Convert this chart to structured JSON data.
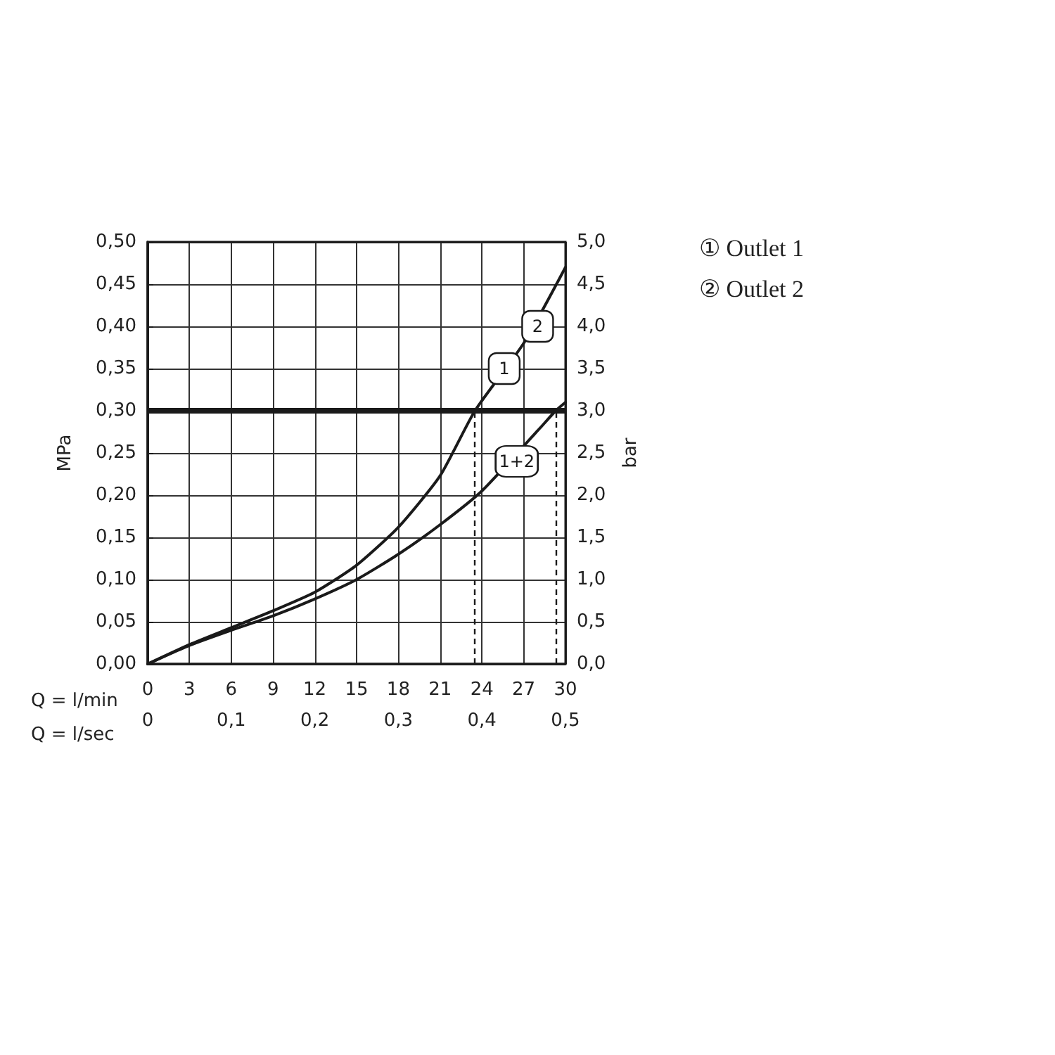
{
  "chart_data": {
    "type": "line",
    "xlabel": "Q = l/min",
    "ylabel": "MPa",
    "y2label": "bar",
    "x2label": "Q = l/sec",
    "xlim": [
      0,
      30
    ],
    "xticks": [
      0,
      3,
      6,
      9,
      12,
      15,
      18,
      21,
      24,
      27,
      30
    ],
    "x2lim": [
      0,
      0.5
    ],
    "x2ticks": [
      {
        "value": 0,
        "label": "0"
      },
      {
        "value": 0.1,
        "label": "0,1"
      },
      {
        "value": 0.2,
        "label": "0,2"
      },
      {
        "value": 0.3,
        "label": "0,3"
      },
      {
        "value": 0.4,
        "label": "0,4"
      },
      {
        "value": 0.5,
        "label": "0,5"
      }
    ],
    "ylim": [
      0,
      0.5
    ],
    "yticks": [
      {
        "value": 0,
        "label": "0,00"
      },
      {
        "value": 0.05,
        "label": "0,05"
      },
      {
        "value": 0.1,
        "label": "0,10"
      },
      {
        "value": 0.15,
        "label": "0,15"
      },
      {
        "value": 0.2,
        "label": "0,20"
      },
      {
        "value": 0.25,
        "label": "0,25"
      },
      {
        "value": 0.3,
        "label": "0,30"
      },
      {
        "value": 0.35,
        "label": "0,35"
      },
      {
        "value": 0.4,
        "label": "0,40"
      },
      {
        "value": 0.45,
        "label": "0,45"
      },
      {
        "value": 0.5,
        "label": "0,50"
      }
    ],
    "y2lim": [
      0,
      5
    ],
    "y2ticks": [
      {
        "value": 0,
        "label": "0,0"
      },
      {
        "value": 0.5,
        "label": "0,5"
      },
      {
        "value": 1,
        "label": "1,0"
      },
      {
        "value": 1.5,
        "label": "1,5"
      },
      {
        "value": 2,
        "label": "2,0"
      },
      {
        "value": 2.5,
        "label": "2,5"
      },
      {
        "value": 3,
        "label": "3,0"
      },
      {
        "value": 3.5,
        "label": "3,5"
      },
      {
        "value": 4,
        "label": "4,0"
      },
      {
        "value": 4.5,
        "label": "4,5"
      },
      {
        "value": 5,
        "label": "5,0"
      }
    ],
    "grid": true,
    "marker": "none",
    "line_style": "solid",
    "series": [
      {
        "color": "#1a1a1a",
        "x": [
          0,
          3,
          6,
          9,
          12,
          15,
          18,
          21,
          23.5,
          27,
          30
        ],
        "values": [
          0,
          0.023,
          0.043,
          0.063,
          0.085,
          0.117,
          0.162,
          0.223,
          0.3,
          0.38,
          0.47
        ]
      },
      {
        "color": "#1a1a1a",
        "x": [
          0,
          3,
          6,
          9,
          12,
          15,
          18,
          21,
          24,
          28.2,
          29.3,
          30
        ],
        "values": [
          0,
          0.022,
          0.04,
          0.057,
          0.077,
          0.1,
          0.13,
          0.165,
          0.205,
          0.28,
          0.3,
          0.31
        ]
      }
    ],
    "ref_lines": [
      {
        "axis": "y",
        "value": 0.3,
        "color": "#1a1a1a"
      },
      {
        "axis": "x",
        "value": 23.5,
        "color": "#1a1a1a",
        "line_style": "dashed"
      },
      {
        "axis": "x",
        "value": 29.3,
        "color": "#1a1a1a",
        "line_style": "dashed"
      }
    ],
    "annotations": [
      {
        "text": "1",
        "x": 25.6,
        "y": 0.35
      },
      {
        "text": "2",
        "x": 28,
        "y": 0.4
      },
      {
        "text": "1+2",
        "x": 26.5,
        "y": 0.24
      },
      "① Outlet 1",
      "② Outlet 2"
    ]
  }
}
